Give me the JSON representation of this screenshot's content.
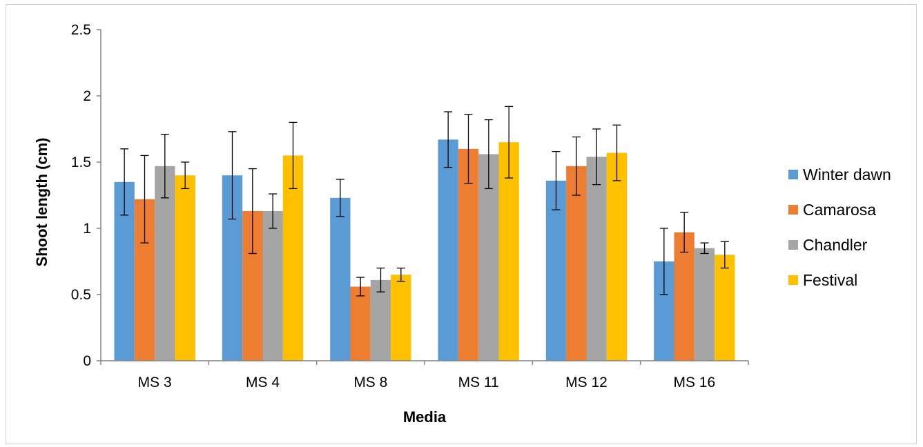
{
  "chart_data": {
    "type": "bar",
    "title": "",
    "xlabel": "Media",
    "ylabel": "Shoot length (cm)",
    "ylim": [
      0,
      2.5
    ],
    "yticks": [
      0,
      0.5,
      1,
      1.5,
      2,
      2.5
    ],
    "ytick_labels": [
      "0",
      "0.5",
      "1",
      "1.5",
      "2",
      "2.5"
    ],
    "grid": false,
    "legend_position": "right",
    "categories": [
      "MS 3",
      "MS 4",
      "MS 8",
      "MS 11",
      "MS 12",
      "MS 16"
    ],
    "series": [
      {
        "name": "Winter dawn",
        "color": "#5b9bd5",
        "values": [
          1.35,
          1.4,
          1.23,
          1.67,
          1.36,
          0.75
        ],
        "errors": [
          0.25,
          0.33,
          0.14,
          0.21,
          0.22,
          0.25
        ]
      },
      {
        "name": "Camarosa",
        "color": "#ed7d31",
        "values": [
          1.22,
          1.13,
          0.56,
          1.6,
          1.47,
          0.97
        ],
        "errors": [
          0.33,
          0.32,
          0.07,
          0.26,
          0.22,
          0.15
        ]
      },
      {
        "name": "Chandler",
        "color": "#a5a5a5",
        "values": [
          1.47,
          1.13,
          0.61,
          1.56,
          1.54,
          0.85
        ],
        "errors": [
          0.24,
          0.13,
          0.09,
          0.26,
          0.21,
          0.04
        ]
      },
      {
        "name": "Festival",
        "color": "#ffc000",
        "values": [
          1.4,
          1.55,
          0.65,
          1.65,
          1.57,
          0.8
        ],
        "errors": [
          0.1,
          0.25,
          0.05,
          0.27,
          0.21,
          0.1
        ]
      }
    ]
  }
}
